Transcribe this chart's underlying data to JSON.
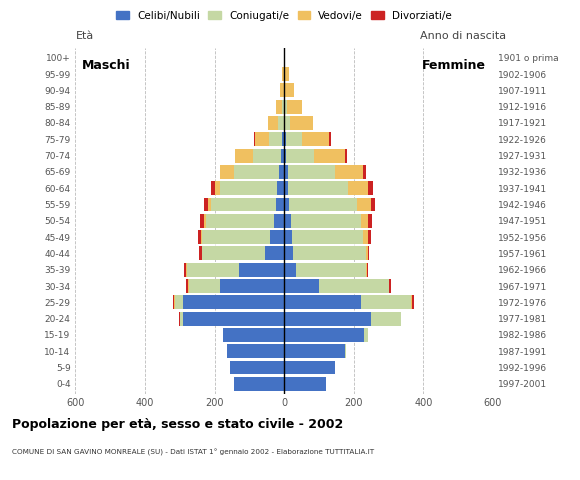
{
  "title": "Popolazione per età, sesso e stato civile - 2002",
  "subtitle": "COMUNE DI SAN GAVINO MONREALE (SU) - Dati ISTAT 1° gennaio 2002 - Elaborazione TUTTITALIA.IT",
  "ylabel_left": "Età",
  "ylabel_right": "Anno di nascita",
  "label_maschi": "Maschi",
  "label_femmine": "Femmine",
  "legend_labels": [
    "Celibi/Nubili",
    "Coniugati/e",
    "Vedovi/e",
    "Divorziati/e"
  ],
  "colors": {
    "celibe": "#4472C4",
    "coniugato": "#C5D8A4",
    "vedovo": "#F0C060",
    "divorziato": "#CC2222"
  },
  "age_groups": [
    "0-4",
    "5-9",
    "10-14",
    "15-19",
    "20-24",
    "25-29",
    "30-34",
    "35-39",
    "40-44",
    "45-49",
    "50-54",
    "55-59",
    "60-64",
    "65-69",
    "70-74",
    "75-79",
    "80-84",
    "85-89",
    "90-94",
    "95-99",
    "100+"
  ],
  "birth_years": [
    "1997-2001",
    "1992-1996",
    "1987-1991",
    "1982-1986",
    "1977-1981",
    "1972-1976",
    "1967-1971",
    "1962-1966",
    "1957-1961",
    "1952-1956",
    "1947-1951",
    "1942-1946",
    "1937-1941",
    "1932-1936",
    "1927-1931",
    "1922-1926",
    "1917-1921",
    "1912-1916",
    "1907-1911",
    "1902-1906",
    "1901 o prima"
  ],
  "maschi": {
    "celibe": [
      145,
      155,
      165,
      175,
      290,
      290,
      185,
      130,
      55,
      40,
      30,
      25,
      20,
      15,
      10,
      5,
      2,
      0,
      0,
      0,
      0
    ],
    "coniugato": [
      0,
      0,
      0,
      2,
      10,
      25,
      90,
      150,
      180,
      195,
      195,
      185,
      165,
      130,
      80,
      40,
      15,
      5,
      2,
      0,
      0
    ],
    "vedovo": [
      0,
      0,
      0,
      0,
      0,
      2,
      2,
      2,
      2,
      5,
      5,
      10,
      15,
      40,
      50,
      40,
      30,
      20,
      10,
      5,
      0
    ],
    "divorziato": [
      0,
      0,
      0,
      0,
      2,
      2,
      5,
      5,
      8,
      8,
      12,
      10,
      10,
      0,
      2,
      2,
      0,
      0,
      0,
      0,
      0
    ]
  },
  "femmine": {
    "celibe": [
      120,
      145,
      175,
      230,
      250,
      220,
      100,
      35,
      25,
      22,
      20,
      15,
      12,
      10,
      5,
      5,
      2,
      2,
      0,
      0,
      0
    ],
    "coniugato": [
      0,
      0,
      2,
      10,
      85,
      145,
      200,
      200,
      210,
      205,
      200,
      195,
      170,
      135,
      80,
      45,
      15,
      5,
      2,
      0,
      0
    ],
    "vedovo": [
      0,
      0,
      0,
      0,
      0,
      2,
      2,
      2,
      5,
      15,
      20,
      40,
      60,
      80,
      90,
      80,
      65,
      45,
      25,
      15,
      2
    ],
    "divorziato": [
      0,
      0,
      0,
      0,
      2,
      5,
      5,
      5,
      5,
      8,
      12,
      12,
      12,
      10,
      5,
      5,
      2,
      0,
      0,
      0,
      0
    ]
  },
  "xlim": 600,
  "xticks": [
    -600,
    -400,
    -200,
    0,
    200,
    400,
    600
  ],
  "xticklabels": [
    "600",
    "400",
    "200",
    "0",
    "200",
    "400",
    "600"
  ],
  "background_color": "#ffffff",
  "grid_color": "#bbbbbb",
  "bar_height": 0.85
}
